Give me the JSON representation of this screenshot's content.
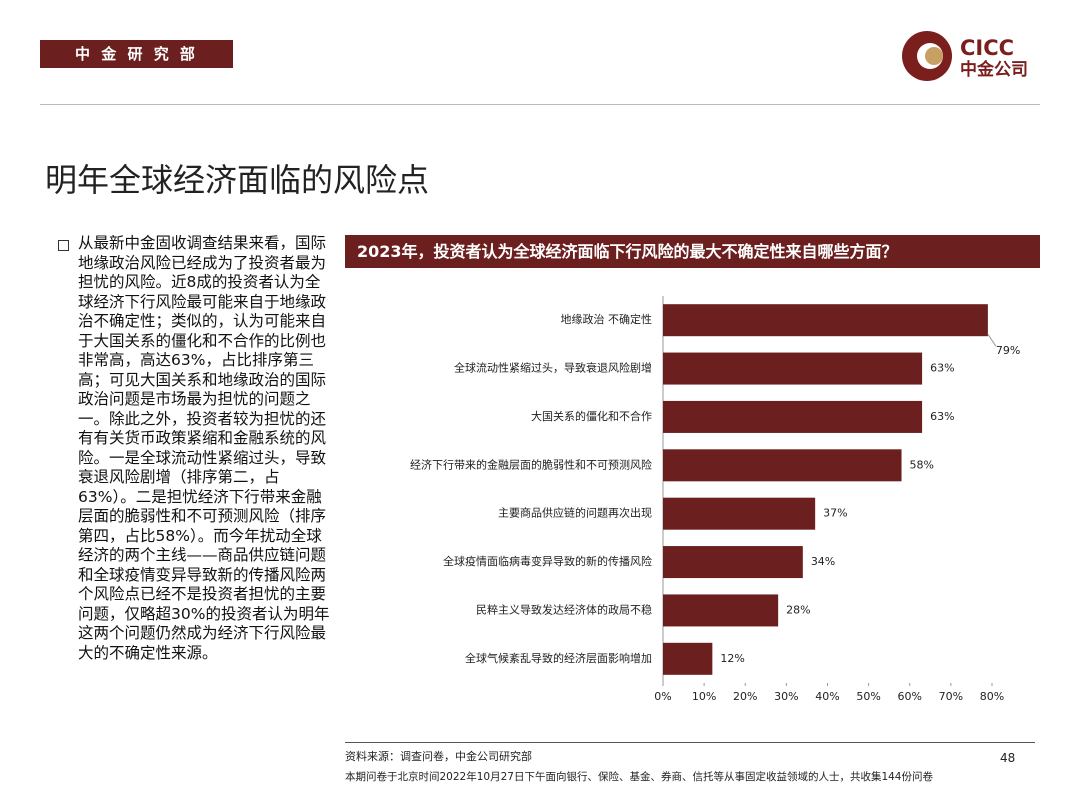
{
  "header": {
    "department": "中 金 研 究 部",
    "logo_en": "CICC",
    "logo_cn": "中金公司"
  },
  "title": "明年全球经济面临的风险点",
  "body": "从最新中金固收调查结果来看，国际地缘政治风险已经成为了投资者最为担忧的风险。近8成的投资者认为全球经济下行风险最可能来自于地缘政治不确定性；类似的，认为可能来自于大国关系的僵化和不合作的比例也非常高，高达63%，占比排序第三高；可见大国关系和地缘政治的国际政治问题是市场最为担忧的问题之一。除此之外，投资者较为担忧的还有有关货币政策紧缩和金融系统的风险。一是全球流动性紧缩过头，导致衰退风险剧增（排序第二，占63%）。二是担忧经济下行带来金融层面的脆弱性和不可预测风险（排序第四，占比58%）。而今年扰动全球经济的两个主线——商品供应链问题和全球疫情变异导致新的传播风险两个风险点已经不是投资者担忧的主要问题，仅略超30%的投资者认为明年这两个问题仍然成为经济下行风险最大的不确定性来源。",
  "chart_data": {
    "type": "hbar",
    "title": "2023年，投资者认为全球经济面临下行风险的最大不确定性来自哪些方面？",
    "categories": [
      "地缘政治 不确定性",
      "全球流动性紧缩过头，导致衰退风险剧增",
      "大国关系的僵化和不合作",
      "经济下行带来的金融层面的脆弱性和不可预测风险",
      "主要商品供应链的问题再次出现",
      "全球疫情面临病毒变异导致的新的传播风险",
      "民粹主义导致发达经济体的政局不稳",
      "全球气候紊乱导致的经济层面影响增加"
    ],
    "values": [
      79,
      63,
      63,
      58,
      37,
      34,
      28,
      12
    ],
    "value_labels": [
      "79%",
      "63%",
      "63%",
      "58%",
      "37%",
      "34%",
      "28%",
      "12%"
    ],
    "color": "#6b1f1f",
    "xlim": [
      0,
      80
    ],
    "xticks": [
      {
        "value": 0,
        "label": "0%"
      },
      {
        "value": 10,
        "label": "10%"
      },
      {
        "value": 20,
        "label": "20%"
      },
      {
        "value": 30,
        "label": "30%"
      },
      {
        "value": 40,
        "label": "40%"
      },
      {
        "value": 50,
        "label": "50%"
      },
      {
        "value": 60,
        "label": "60%"
      },
      {
        "value": 70,
        "label": "70%"
      },
      {
        "value": 80,
        "label": "80%"
      }
    ]
  },
  "footer": {
    "source": "资料来源：调查问卷，中金公司研究部",
    "page": "48",
    "note": "本期问卷于北京时间2022年10月27日下午面向银行、保险、基金、券商、信托等从事固定收益领域的人士，共收集144份问卷"
  }
}
